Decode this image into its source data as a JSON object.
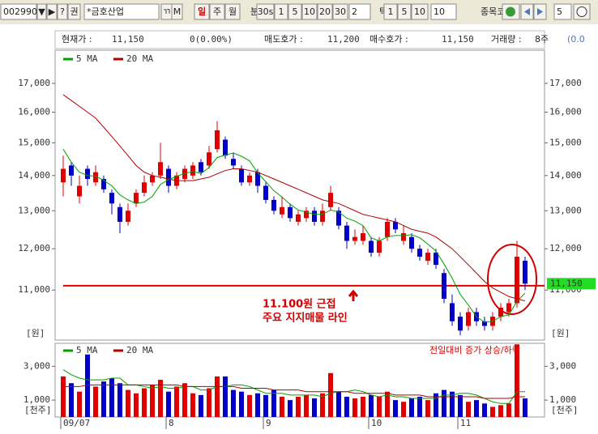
{
  "toolbar": {
    "code": "002990",
    "buttons1": [
      "▼",
      "▶",
      "?",
      "권"
    ],
    "name": "*금호산업",
    "buttons2": [
      "ㄲ",
      "M"
    ],
    "periods": [
      "일",
      "주",
      "월"
    ],
    "minute_label": "분",
    "minute_buttons": [
      "30s",
      "1",
      "5",
      "10",
      "20",
      "30"
    ],
    "minute_input": "2",
    "tick_label": "틱",
    "tick_buttons": [
      "1",
      "5",
      "10"
    ],
    "tick_input": "10",
    "code_label": "종목코드:",
    "count_input": "5"
  },
  "info_bar": {
    "price_label": "현재가 :",
    "price": "11,150",
    "change": "0(0.00%)",
    "ask_label": "매도호가 :",
    "ask": "11,200",
    "bid_label": "매수호가 :",
    "bid": "11,150",
    "volume_label": "거래량 :",
    "volume": "8주",
    "volume_change": "(0.0"
  },
  "chart_data": {
    "type": "candlestick",
    "log_scale": true,
    "categories": [
      "09/07",
      null,
      null,
      null,
      null,
      null,
      null,
      null,
      null,
      null,
      null,
      null,
      null,
      "8",
      null,
      null,
      null,
      null,
      null,
      null,
      null,
      null,
      null,
      null,
      null,
      "9",
      null,
      null,
      null,
      null,
      null,
      null,
      null,
      null,
      null,
      null,
      null,
      null,
      "10",
      null,
      null,
      null,
      null,
      null,
      null,
      null,
      null,
      null,
      null,
      "11",
      null,
      null,
      null,
      null,
      null,
      null,
      null,
      null
    ],
    "open": [
      13800,
      14300,
      13400,
      14200,
      13800,
      13900,
      13500,
      13100,
      12700,
      13200,
      13500,
      13800,
      14000,
      14200,
      13700,
      13900,
      14000,
      14400,
      14300,
      14800,
      15100,
      14500,
      14200,
      13800,
      14100,
      13700,
      13300,
      12900,
      13100,
      12700,
      12800,
      13000,
      12700,
      13100,
      13000,
      12600,
      12200,
      12200,
      12200,
      11900,
      12300,
      12700,
      12200,
      12300,
      12000,
      11700,
      11900,
      11400,
      10700,
      10400,
      10200,
      10500,
      10300,
      10200,
      10400,
      10500,
      10700,
      11700
    ],
    "high": [
      14600,
      14400,
      14000,
      14300,
      14300,
      14000,
      13600,
      13200,
      13200,
      13600,
      14000,
      14100,
      15000,
      14300,
      14100,
      14300,
      14400,
      14500,
      14900,
      15700,
      15200,
      14700,
      14300,
      14100,
      14200,
      13800,
      13400,
      13400,
      13200,
      13000,
      13100,
      13100,
      13200,
      13700,
      13100,
      12700,
      12500,
      12600,
      12300,
      12300,
      12800,
      12800,
      12600,
      12400,
      12100,
      12000,
      12000,
      11500,
      10900,
      10500,
      10600,
      10600,
      10400,
      10500,
      10700,
      10800,
      12200,
      11800
    ],
    "low": [
      13400,
      13700,
      13200,
      13700,
      13700,
      13500,
      12900,
      12400,
      12600,
      13100,
      13400,
      13700,
      13900,
      13500,
      13600,
      13800,
      13900,
      14000,
      14200,
      14700,
      14500,
      14200,
      13700,
      13700,
      13500,
      13200,
      12900,
      12800,
      12700,
      12600,
      12700,
      12600,
      12600,
      13000,
      12500,
      12000,
      12100,
      12100,
      11800,
      11800,
      12200,
      12400,
      12100,
      11900,
      11700,
      11600,
      11500,
      10700,
      10200,
      10000,
      10100,
      10200,
      10100,
      10100,
      10300,
      10400,
      10600,
      11000
    ],
    "close": [
      14200,
      14000,
      13700,
      13900,
      14100,
      13600,
      13200,
      12700,
      13000,
      13500,
      13800,
      14000,
      14400,
      13700,
      14000,
      14200,
      14300,
      14100,
      14700,
      15400,
      14600,
      14300,
      13800,
      14000,
      13700,
      13300,
      13000,
      13100,
      12800,
      12900,
      13000,
      12700,
      13000,
      13500,
      12600,
      12200,
      12300,
      12400,
      11900,
      12200,
      12700,
      12500,
      12400,
      12000,
      11800,
      11900,
      11600,
      10800,
      10300,
      10100,
      10500,
      10300,
      10200,
      10400,
      10600,
      10700,
      11800,
      11150
    ],
    "up_color": "#e00000",
    "down_color": "#0000c8",
    "series": [
      {
        "name": "5 MA",
        "color": "#00a000",
        "values": [
          14800,
          14400,
          14100,
          14000,
          13980,
          13860,
          13700,
          13440,
          13300,
          13200,
          13240,
          13400,
          13740,
          13880,
          13980,
          14060,
          14120,
          14060,
          14240,
          14540,
          14620,
          14680,
          14580,
          14440,
          14080,
          13820,
          13560,
          13380,
          13180,
          13020,
          12960,
          12900,
          12900,
          13020,
          12960,
          12800,
          12720,
          12600,
          12280,
          12200,
          12300,
          12340,
          12340,
          12360,
          12280,
          12120,
          11940,
          11620,
          11280,
          10900,
          10660,
          10400,
          10280,
          10300,
          10400,
          10440,
          10740,
          10930
        ]
      },
      {
        "name": "20 MA",
        "color": "#b00000",
        "values": [
          16600,
          16400,
          16200,
          16000,
          15800,
          15500,
          15200,
          14900,
          14600,
          14300,
          14100,
          14000,
          13950,
          13900,
          13850,
          13850,
          13850,
          13900,
          13950,
          14050,
          14150,
          14200,
          14200,
          14150,
          14100,
          14000,
          13900,
          13800,
          13700,
          13600,
          13500,
          13400,
          13300,
          13250,
          13200,
          13100,
          13000,
          12900,
          12850,
          12800,
          12750,
          12700,
          12600,
          12500,
          12450,
          12400,
          12300,
          12150,
          12000,
          11800,
          11600,
          11400,
          11200,
          11050,
          10950,
          10850,
          10800,
          10750
        ]
      }
    ],
    "ylim": [
      9900,
      18230
    ],
    "yticks": [
      {
        "value": 11000,
        "label": "11,000"
      },
      {
        "value": 12000,
        "label": "12,000"
      },
      {
        "value": 13000,
        "label": "13,000"
      },
      {
        "value": 14000,
        "label": "14,000"
      },
      {
        "value": 15000,
        "label": "15,000"
      },
      {
        "value": 16000,
        "label": "16,000"
      },
      {
        "value": 17000,
        "label": "17,000"
      }
    ],
    "y_unit": "[원]",
    "support_line": 11100,
    "last_price": {
      "value": 11150,
      "label": "11,150"
    },
    "annotation": [
      "11.100원 근접",
      "주요 지지매물 라인"
    ],
    "volume": [
      2400,
      2000,
      1500,
      3700,
      1800,
      2100,
      2300,
      2000,
      1600,
      1400,
      1700,
      1900,
      2200,
      1500,
      1800,
      2000,
      1400,
      1300,
      1700,
      2400,
      2400,
      1600,
      1500,
      1300,
      1400,
      1300,
      1600,
      1200,
      1000,
      1200,
      1300,
      1100,
      1400,
      2600,
      1500,
      1200,
      1100,
      1200,
      1300,
      1200,
      1500,
      1000,
      900,
      1100,
      1200,
      1000,
      1400,
      1600,
      1500,
      1300,
      900,
      1000,
      800,
      600,
      700,
      800,
      4300,
      1100
    ],
    "volume_series": [
      {
        "name": "5 MA",
        "color": "#00a000",
        "values": [
          2800,
          2500,
          2300,
          2200,
          2200,
          2200,
          2300,
          2300,
          1900,
          1900,
          1800,
          1700,
          1800,
          1700,
          1700,
          1800,
          1800,
          1600,
          1600,
          1800,
          1800,
          1900,
          1900,
          1800,
          1600,
          1400,
          1400,
          1400,
          1300,
          1300,
          1300,
          1300,
          1200,
          1400,
          1500,
          1500,
          1600,
          1500,
          1300,
          1200,
          1300,
          1200,
          1200,
          1100,
          1100,
          1100,
          1100,
          1300,
          1300,
          1400,
          1400,
          1300,
          1100,
          900,
          800,
          800,
          1500,
          1500
        ]
      },
      {
        "name": "20 MA",
        "color": "#b00000",
        "values": [
          1800,
          1800,
          1800,
          1900,
          1900,
          1900,
          1900,
          1900,
          1900,
          1900,
          1900,
          1900,
          1900,
          1900,
          1900,
          1800,
          1800,
          1800,
          1800,
          1800,
          1800,
          1800,
          1700,
          1700,
          1700,
          1700,
          1600,
          1600,
          1600,
          1600,
          1500,
          1500,
          1500,
          1500,
          1500,
          1500,
          1400,
          1400,
          1400,
          1400,
          1400,
          1300,
          1300,
          1300,
          1300,
          1200,
          1200,
          1200,
          1200,
          1200,
          1200,
          1200,
          1100,
          1100,
          1100,
          1100,
          1200,
          1200
        ]
      }
    ],
    "volume_ylim": [
      0,
      4360
    ],
    "volume_yticks": [
      {
        "value": 1000,
        "label": "1,000"
      },
      {
        "value": 3000,
        "label": "3,000"
      }
    ],
    "volume_unit": "[천주]",
    "volume_note": "전일대비 증가 상승/하락"
  }
}
